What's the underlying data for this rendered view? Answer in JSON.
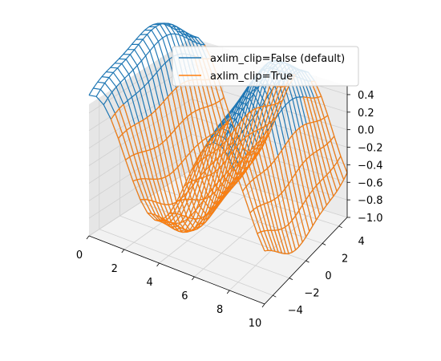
{
  "chart_data": {
    "type": "wireframe-3d",
    "title": "",
    "xlabel": "",
    "ylabel": "",
    "zlabel": "",
    "xlim": [
      0,
      10
    ],
    "ylim": [
      -5,
      5
    ],
    "zlim": [
      -1.0,
      0.5
    ],
    "x_ticks": [
      "0",
      "2",
      "4",
      "6",
      "8",
      "10"
    ],
    "y_ticks": [
      "−4",
      "−2",
      "0",
      "2",
      "4"
    ],
    "z_ticks": [
      "−1.0",
      "−0.8",
      "−0.6",
      "−0.4",
      "−0.2",
      "0.0",
      "0.2",
      "0.4"
    ],
    "grid": true,
    "legend_position": "upper-right",
    "series": [
      {
        "name": "axlim_clip=False (default)",
        "color": "#1f77b4",
        "axlim_clip": false
      },
      {
        "name": "axlim_clip=True",
        "color": "#ff7f0e",
        "axlim_clip": true
      }
    ],
    "surface": {
      "x_range": [
        0,
        10
      ],
      "y_range": [
        -5,
        5
      ],
      "z_range": [
        -1.0,
        1.0
      ]
    }
  }
}
